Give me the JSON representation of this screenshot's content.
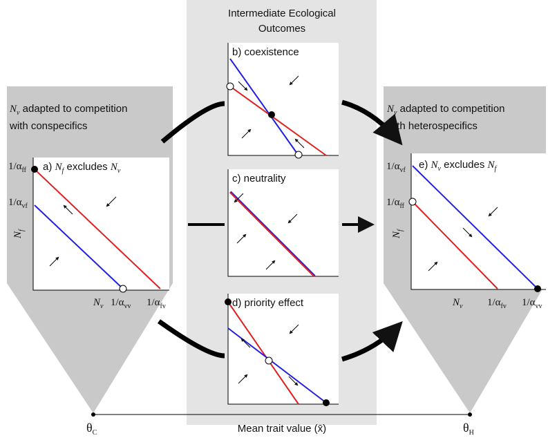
{
  "center": {
    "title_lines": [
      "Intermediate Ecological",
      "Outcomes"
    ]
  },
  "left": {
    "symbol": "N",
    "sub": "v",
    "line1": " adapted to competition",
    "line2": "with conspecifics"
  },
  "right": {
    "symbol": "N",
    "sub": "v",
    "line1": " adapted to competition",
    "line2": "with heterospecifics"
  },
  "panels": {
    "a": {
      "prefix": "a) ",
      "s1": "N",
      "sub1": "f",
      "mid": " excludes ",
      "s2": "N",
      "sub2": "v"
    },
    "b": {
      "label": "b) coexistence"
    },
    "c": {
      "label": "c) neutrality"
    },
    "d": {
      "label": "d) priority effect"
    },
    "e": {
      "prefix": "e) ",
      "s1": "N",
      "sub1": "v",
      "mid": " excludes ",
      "s2": "N",
      "sub2": "f"
    }
  },
  "axes_a": {
    "y1": {
      "base": "1/α",
      "sub": "ff"
    },
    "y2": {
      "base": "1/α",
      "sub": "vf"
    },
    "ylabel": {
      "base": "N",
      "sub": "f"
    },
    "xlabel": {
      "base": "N",
      "sub": "v"
    },
    "x1": {
      "base": "1/α",
      "sub": "vv"
    },
    "x2": {
      "base": "1/α",
      "sub": "fv"
    }
  },
  "axes_e": {
    "y1": {
      "base": "1/α",
      "sub": "vf"
    },
    "y2": {
      "base": "1/α",
      "sub": "ff"
    },
    "ylabel": {
      "base": "N",
      "sub": "f"
    },
    "xlabel": {
      "base": "N",
      "sub": "v"
    },
    "x1": {
      "base": "1/α",
      "sub": "fv"
    },
    "x2": {
      "base": "1/α",
      "sub": "vv"
    }
  },
  "bottom": {
    "left": {
      "base": "θ",
      "sub": "C"
    },
    "axis_label": "Mean trait value (x̄)",
    "right": {
      "base": "θ",
      "sub": "H"
    }
  }
}
